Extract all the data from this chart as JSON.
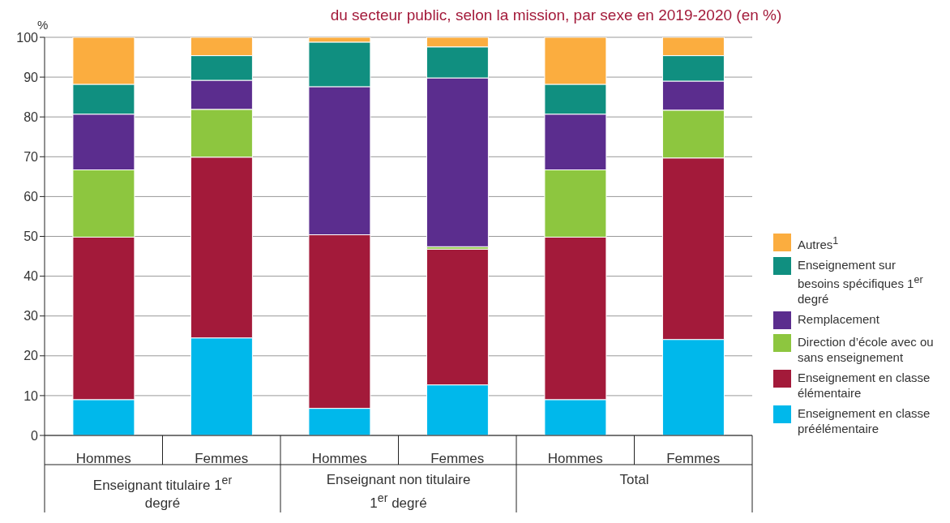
{
  "chart_data": {
    "type": "bar",
    "stacked": true,
    "title": "du secteur public, selon la mission, par sexe en 2019-2020 (en %)",
    "ylabel": "%",
    "categories": [
      "Hommes",
      "Femmes",
      "Hommes",
      "Femmes",
      "Hommes",
      "Femmes"
    ],
    "annotations": [
      "Enseignant titulaire 1$^{er}$ degré",
      "Enseignant non titulaire 1$^{er}$ degré",
      "Total"
    ],
    "series": [
      {
        "name": "Enseignement en classe préélémentaire",
        "color": "#00b8eb",
        "values": [
          9,
          24.5,
          6.8,
          12.7,
          9,
          24.1
        ]
      },
      {
        "name": "Enseignement en classe élémentaire",
        "color": "#a31a3a",
        "values": [
          40.8,
          45.4,
          43.6,
          34.1,
          40.8,
          45.6
        ]
      },
      {
        "name": "Direction d’école avec ou sans enseignement",
        "color": "#8dc63f",
        "values": [
          16.9,
          12,
          0,
          0.6,
          16.9,
          12
        ]
      },
      {
        "name": "Remplacement",
        "color": "#5b2d8e",
        "values": [
          14,
          7.3,
          37.2,
          42.4,
          14,
          7.3
        ]
      },
      {
        "name": "Enseignement sur besoins spécifiques 1$^{er}$ degré",
        "color": "#108f80",
        "values": [
          7.5,
          6.2,
          11.2,
          7.8,
          7.5,
          6.4
        ]
      },
      {
        "name": "Autres$^{1}$",
        "color": "#fbad3f",
        "values": [
          11.8,
          4.6,
          1.2,
          2.4,
          11.8,
          4.6
        ]
      }
    ],
    "ylim": [
      0,
      100
    ],
    "yticks": [
      0,
      10,
      20,
      30,
      40,
      50,
      60,
      70,
      80,
      90,
      100
    ],
    "grid": "y",
    "legend": "right"
  }
}
